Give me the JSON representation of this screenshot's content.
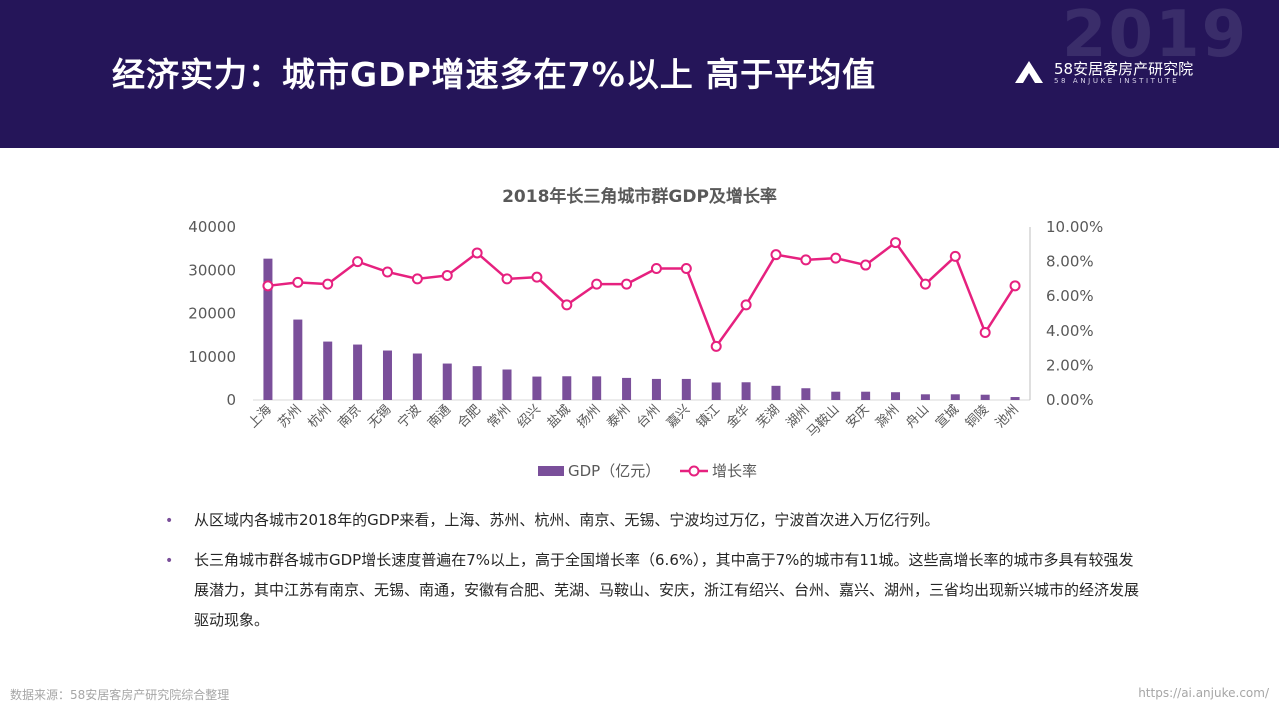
{
  "header": {
    "title": "经济实力：城市GDP增速多在7%以上 高于平均值",
    "year_deco": "2019",
    "logo_name": "58安居客房产研究院",
    "logo_en": "58 ANJUKE INSTITUTE"
  },
  "colors": {
    "header_bg": "#251559",
    "bar": "#7a4f9a",
    "line": "#e6217f",
    "text": "#262626",
    "muted": "#a6a6a6"
  },
  "chart_data": {
    "type": "bar",
    "title": "2018年长三角城市群GDP及增长率",
    "categories": [
      "上海",
      "苏州",
      "杭州",
      "南京",
      "无锡",
      "宁波",
      "南通",
      "合肥",
      "常州",
      "绍兴",
      "盐城",
      "扬州",
      "泰州",
      "台州",
      "嘉兴",
      "镇江",
      "金华",
      "芜湖",
      "湖州",
      "马鞍山",
      "安庆",
      "滁州",
      "舟山",
      "宣城",
      "铜陵",
      "池州"
    ],
    "series": [
      {
        "name": "GDP（亿元）",
        "type": "bar",
        "axis": "left",
        "values": [
          32680,
          18597,
          13509,
          12820,
          11439,
          10746,
          8427,
          7823,
          7050,
          5417,
          5487,
          5466,
          5108,
          4874,
          4872,
          4050,
          4100,
          3279,
          2719,
          1918,
          1918,
          1801,
          1317,
          1317,
          1222,
          685
        ]
      },
      {
        "name": "增长率",
        "type": "line",
        "axis": "right",
        "values": [
          0.066,
          0.068,
          0.067,
          0.08,
          0.074,
          0.07,
          0.072,
          0.085,
          0.07,
          0.071,
          0.055,
          0.067,
          0.067,
          0.076,
          0.076,
          0.031,
          0.055,
          0.084,
          0.081,
          0.082,
          0.078,
          0.091,
          0.067,
          0.083,
          0.039,
          0.066
        ]
      }
    ],
    "y_left": {
      "min": 0,
      "max": 40000,
      "ticks": [
        "0",
        "10000",
        "20000",
        "30000",
        "40000"
      ]
    },
    "y_right": {
      "min": 0,
      "max": 0.1,
      "ticks": [
        "0.00%",
        "2.00%",
        "4.00%",
        "6.00%",
        "8.00%",
        "10.00%"
      ]
    },
    "legend": {
      "position": "bottom",
      "items": [
        "GDP（亿元）",
        "增长率"
      ]
    },
    "grid": false
  },
  "bullets": [
    "从区域内各城市2018年的GDP来看，上海、苏州、杭州、南京、无锡、宁波均过万亿，宁波首次进入万亿行列。",
    "长三角城市群各城市GDP增长速度普遍在7%以上，高于全国增长率（6.6%），其中高于7%的城市有11城。这些高增长率的城市多具有较强发展潜力，其中江苏有南京、无锡、南通，安徽有合肥、芜湖、马鞍山、安庆，浙江有绍兴、台州、嘉兴、湖州，三省均出现新兴城市的经济发展驱动现象。"
  ],
  "footer": {
    "source": "数据来源：58安居客房产研究院综合整理",
    "url": "https://ai.anjuke.com/"
  }
}
